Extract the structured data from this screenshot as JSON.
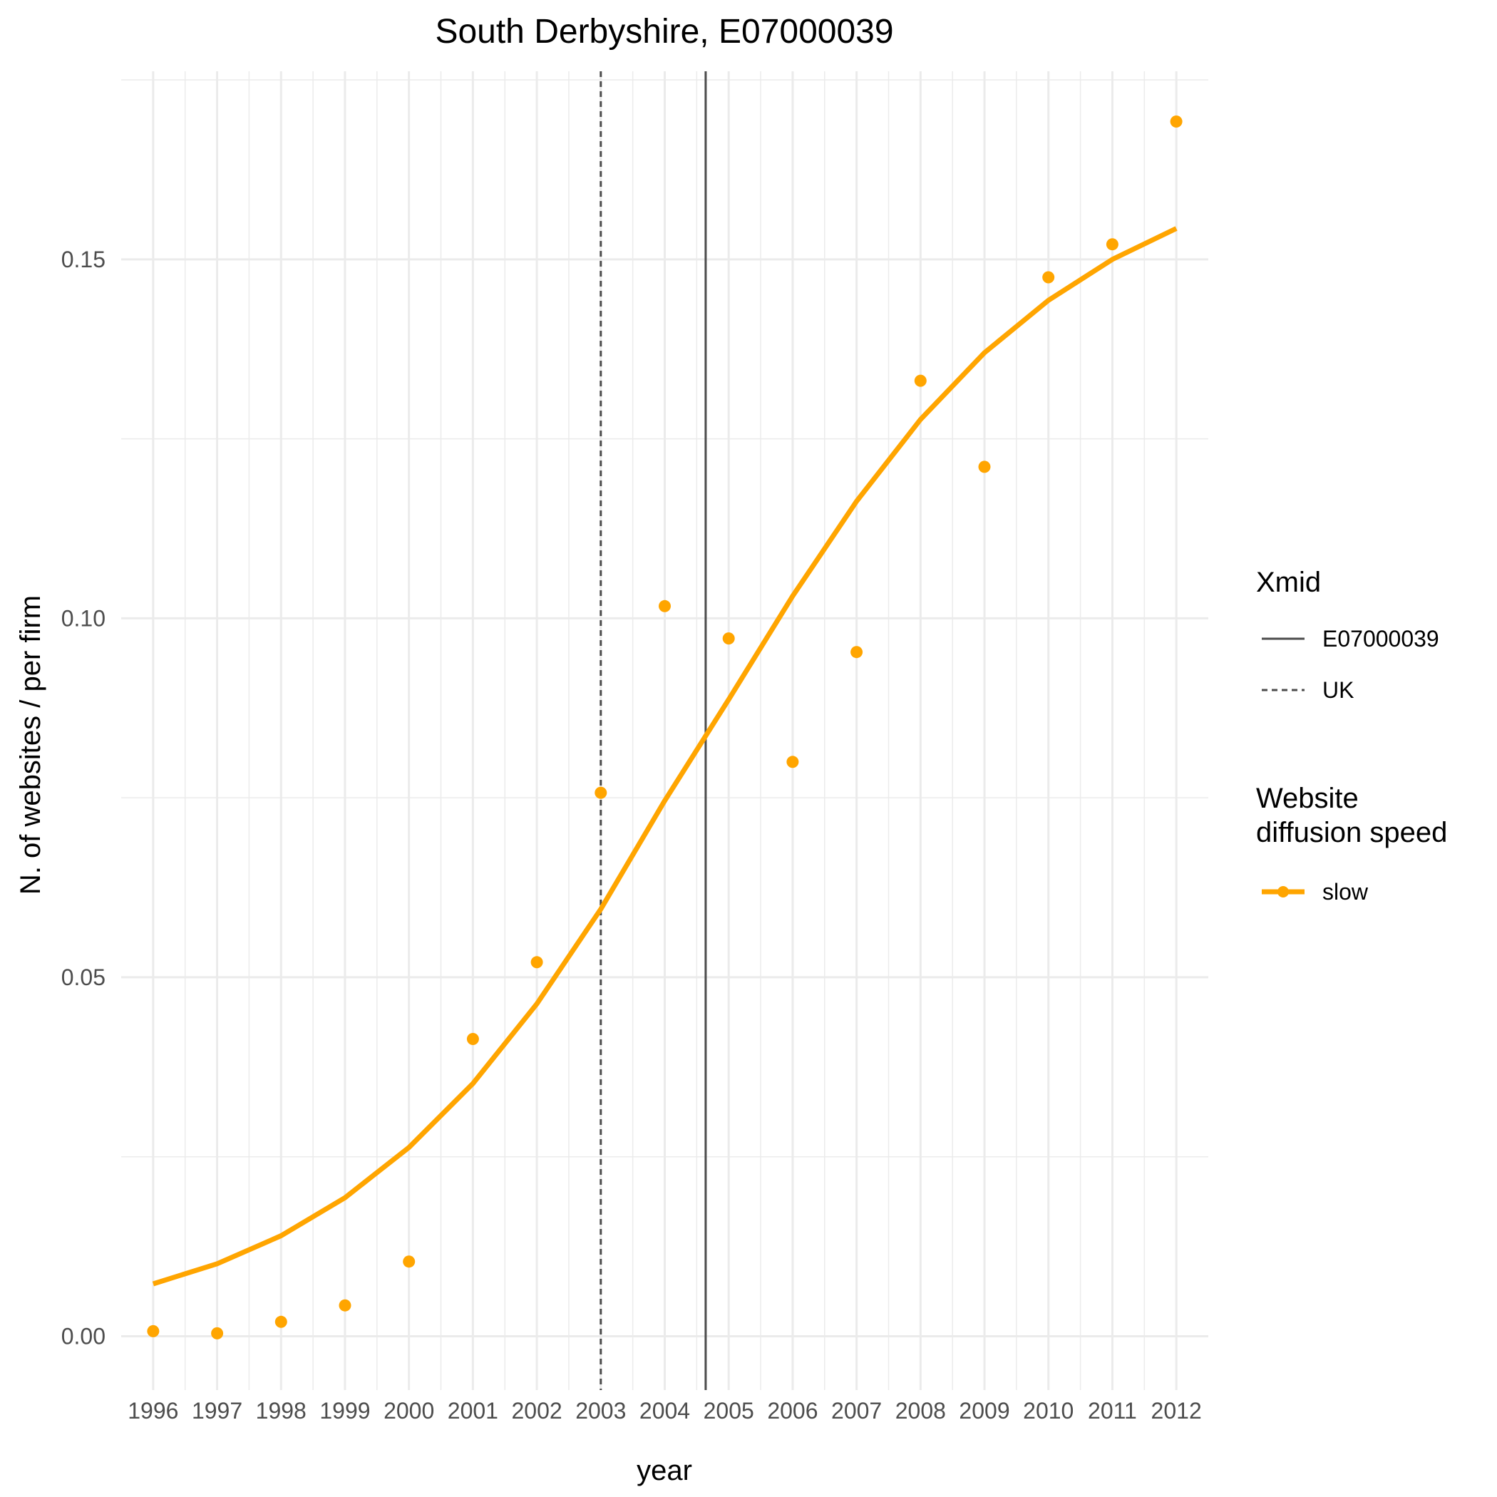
{
  "chart_data": {
    "type": "line",
    "title": "South Derbyshire, E07000039",
    "xlabel": "year",
    "ylabel": "N. of websites / per firm",
    "xlim": [
      1995.5,
      2012.5
    ],
    "ylim": [
      -0.0075,
      0.1762
    ],
    "x_ticks": [
      1996,
      1997,
      1998,
      1999,
      2000,
      2001,
      2002,
      2003,
      2004,
      2005,
      2006,
      2007,
      2008,
      2009,
      2010,
      2011,
      2012
    ],
    "y_ticks": [
      0.0,
      0.05,
      0.1,
      0.15
    ],
    "y_tick_labels": [
      "0.00",
      "0.05",
      "0.10",
      "0.15"
    ],
    "grid": true,
    "legend_position": "right",
    "series": [
      {
        "name": "slow",
        "color": "#FFA500",
        "points": [
          {
            "x": 1996,
            "y": 0.0007
          },
          {
            "x": 1997,
            "y": 0.0004
          },
          {
            "x": 1998,
            "y": 0.002
          },
          {
            "x": 1999,
            "y": 0.0043
          },
          {
            "x": 2000,
            "y": 0.0104
          },
          {
            "x": 2001,
            "y": 0.0414
          },
          {
            "x": 2002,
            "y": 0.0521
          },
          {
            "x": 2003,
            "y": 0.0757
          },
          {
            "x": 2004,
            "y": 0.1017
          },
          {
            "x": 2005,
            "y": 0.0972
          },
          {
            "x": 2006,
            "y": 0.08
          },
          {
            "x": 2007,
            "y": 0.0953
          },
          {
            "x": 2008,
            "y": 0.1331
          },
          {
            "x": 2009,
            "y": 0.1211
          },
          {
            "x": 2010,
            "y": 0.1475
          },
          {
            "x": 2011,
            "y": 0.1521
          },
          {
            "x": 2012,
            "y": 0.1692
          }
        ],
        "fit": [
          {
            "x": 1996,
            "y": 0.0073
          },
          {
            "x": 1997,
            "y": 0.0101
          },
          {
            "x": 1998,
            "y": 0.014
          },
          {
            "x": 1999,
            "y": 0.0193
          },
          {
            "x": 2000,
            "y": 0.0263
          },
          {
            "x": 2001,
            "y": 0.0352
          },
          {
            "x": 2002,
            "y": 0.0463
          },
          {
            "x": 2003,
            "y": 0.0595
          },
          {
            "x": 2004,
            "y": 0.0746
          },
          {
            "x": 2005,
            "y": 0.0887
          },
          {
            "x": 2006,
            "y": 0.1031
          },
          {
            "x": 2007,
            "y": 0.1163
          },
          {
            "x": 2008,
            "y": 0.1277
          },
          {
            "x": 2009,
            "y": 0.137
          },
          {
            "x": 2010,
            "y": 0.1443
          },
          {
            "x": 2011,
            "y": 0.15
          },
          {
            "x": 2012,
            "y": 0.1543
          }
        ]
      }
    ],
    "vlines": [
      {
        "name": "E07000039",
        "x": 2004.64,
        "style": "solid",
        "color": "#4d4d4d"
      },
      {
        "name": "UK",
        "x": 2003.0,
        "style": "dashed",
        "color": "#4d4d4d"
      }
    ],
    "legends": {
      "xmid": {
        "title": "Xmid",
        "items": [
          {
            "label": "E07000039",
            "style": "solid"
          },
          {
            "label": "UK",
            "style": "dashed"
          }
        ]
      },
      "speed": {
        "title_line1": "Website",
        "title_line2": "diffusion speed",
        "items": [
          {
            "label": "slow",
            "color": "#FFA500"
          }
        ]
      }
    }
  }
}
